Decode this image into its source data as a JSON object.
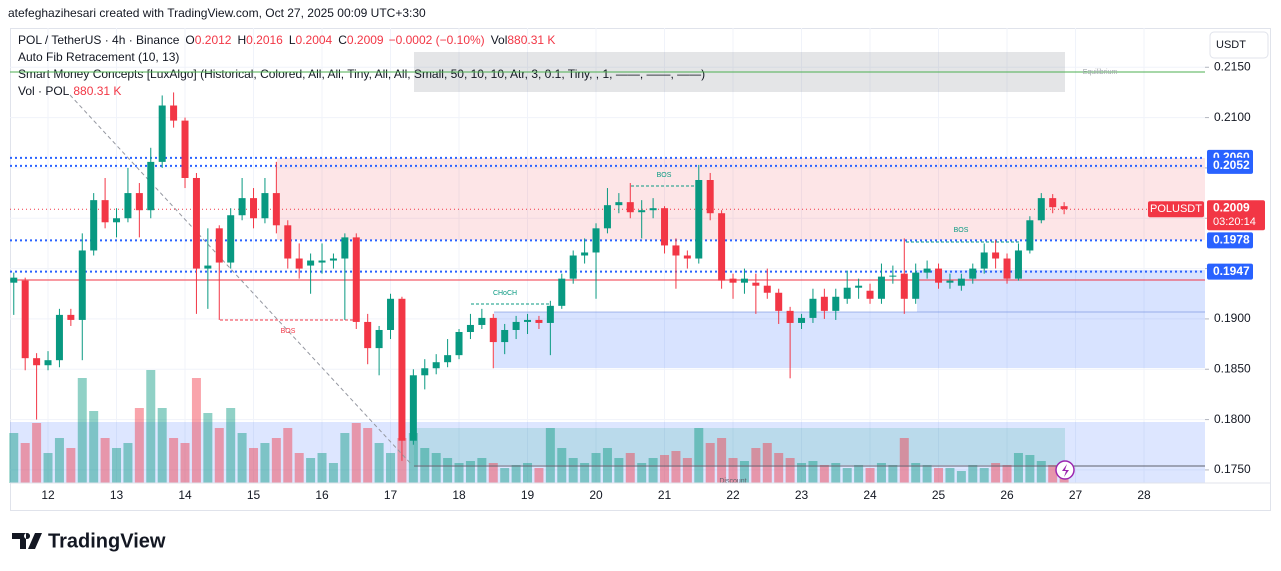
{
  "header": {
    "credit": "atefeghazihesari created with TradingView.com, Oct 27, 2025 00:09 UTC+3:30",
    "symbol": "POL / TetherUS · 4h · Binance",
    "o": "O",
    "h": "H",
    "l": "L",
    "c": "C",
    "change": "−0.0002 (−0.10%)",
    "vol": "Vol",
    "vol_value": "880.31 K",
    "indicators": [
      "Auto Fib Retracement (10, 13)",
      "Smart Money Concepts [LuxAlgo] (Historical, Colored, All, All, Tiny, All, All, Small, 50, 10, 10, Atr, 3, 0.1, Tiny, , 1, ——, ——, ——)",
      "Vol · POL"
    ]
  },
  "chart_data": {
    "type": "candlestick",
    "currency": "USDT",
    "x": [
      11.5,
      11.6667,
      11.8333,
      12,
      12.1667,
      12.3333,
      12.5,
      12.6667,
      12.8333,
      13,
      13.1667,
      13.3333,
      13.5,
      13.6667,
      13.8333,
      14,
      14.1667,
      14.3333,
      14.5,
      14.6667,
      14.8333,
      15,
      15.1667,
      15.3333,
      15.5,
      15.6667,
      15.8333,
      16,
      16.1667,
      16.3333,
      16.5,
      16.6667,
      16.8333,
      17,
      17.1667,
      17.3333,
      17.5,
      17.6667,
      17.8333,
      18,
      18.1667,
      18.3333,
      18.5,
      18.6667,
      18.8333,
      19,
      19.1667,
      19.3333,
      19.5,
      19.6667,
      19.8333,
      20,
      20.1667,
      20.3333,
      20.5,
      20.6667,
      20.8333,
      21,
      21.1667,
      21.3333,
      21.5,
      21.6667,
      21.8333,
      22,
      22.1667,
      22.3333,
      22.5,
      22.6667,
      22.8333,
      23,
      23.1667,
      23.3333,
      23.5,
      23.6667,
      23.8333,
      24,
      24.1667,
      24.3333,
      24.5,
      24.6667,
      24.8333,
      25,
      25.1667,
      25.3333,
      25.5,
      25.6667,
      25.8333,
      26,
      26.1667,
      26.3333,
      26.5,
      26.6667,
      26.8333
    ],
    "open": [
      0.1936,
      0.1938,
      0.1861,
      0.1854,
      0.1859,
      0.1904,
      0.1899,
      0.1968,
      0.2018,
      0.1996,
      0.2,
      0.2025,
      0.2008,
      0.2056,
      0.2112,
      0.2097,
      0.204,
      0.195,
      0.199,
      0.1956,
      0.2003,
      0.202,
      0.2,
      0.2025,
      0.1993,
      0.196,
      0.1953,
      0.1956,
      0.1958,
      0.196,
      0.1981,
      0.1897,
      0.1871,
      0.1889,
      0.192,
      0.1779,
      0.1844,
      0.1851,
      0.1857,
      0.1864,
      0.1887,
      0.1894,
      0.1901,
      0.1877,
      0.1889,
      0.1897,
      0.1899,
      0.1896,
      0.1913,
      0.194,
      0.1963,
      0.1966,
      0.199,
      0.2013,
      0.2016,
      0.2006,
      0.2008,
      0.201,
      0.1973,
      0.1963,
      0.196,
      0.2038,
      0.2005,
      0.194,
      0.1936,
      0.1936,
      0.1933,
      0.1926,
      0.1908,
      0.1896,
      0.1901,
      0.1922,
      0.1908,
      0.192,
      0.1931,
      0.1928,
      0.192,
      0.1942,
      0.1945,
      0.192,
      0.1946,
      0.195,
      0.1936,
      0.1933,
      0.194,
      0.195,
      0.1966,
      0.196,
      0.194,
      0.1968,
      0.1998,
      0.202,
      0.2012
    ],
    "high": [
      0.1946,
      0.1941,
      0.1866,
      0.1868,
      0.191,
      0.191,
      0.1985,
      0.2025,
      0.204,
      0.201,
      0.205,
      0.2035,
      0.207,
      0.2122,
      0.2125,
      0.21,
      0.2045,
      0.199,
      0.1993,
      0.201,
      0.204,
      0.203,
      0.204,
      0.2056,
      0.1998,
      0.1975,
      0.1965,
      0.1975,
      0.1965,
      0.1985,
      0.1985,
      0.1905,
      0.1893,
      0.1925,
      0.1922,
      0.185,
      0.186,
      0.1865,
      0.188,
      0.189,
      0.1905,
      0.191,
      0.1905,
      0.1895,
      0.1903,
      0.1905,
      0.1903,
      0.1918,
      0.1945,
      0.1968,
      0.198,
      0.1995,
      0.203,
      0.2025,
      0.2035,
      0.2018,
      0.202,
      0.2012,
      0.198,
      0.1968,
      0.2053,
      0.2045,
      0.2008,
      0.1945,
      0.195,
      0.1945,
      0.195,
      0.193,
      0.1912,
      0.1905,
      0.193,
      0.193,
      0.193,
      0.1948,
      0.194,
      0.1935,
      0.1955,
      0.1953,
      0.198,
      0.1955,
      0.1958,
      0.1955,
      0.1945,
      0.1945,
      0.1955,
      0.1975,
      0.1978,
      0.1965,
      0.1975,
      0.2002,
      0.2025,
      0.2024,
      0.2016
    ],
    "low": [
      0.1904,
      0.1849,
      0.18,
      0.1849,
      0.1852,
      0.1893,
      0.1859,
      0.1963,
      0.199,
      0.1981,
      0.1996,
      0.1981,
      0.2,
      0.205,
      0.209,
      0.203,
      0.1905,
      0.191,
      0.1899,
      0.195,
      0.1998,
      0.199,
      0.1995,
      0.1985,
      0.195,
      0.194,
      0.1925,
      0.1945,
      0.195,
      0.1899,
      0.189,
      0.1855,
      0.1844,
      0.188,
      0.1759,
      0.1775,
      0.183,
      0.1845,
      0.1852,
      0.186,
      0.188,
      0.189,
      0.1851,
      0.1865,
      0.188,
      0.1885,
      0.189,
      0.1864,
      0.191,
      0.1935,
      0.1955,
      0.192,
      0.1985,
      0.2005,
      0.2,
      0.198,
      0.2,
      0.1965,
      0.193,
      0.195,
      0.1955,
      0.1998,
      0.193,
      0.192,
      0.1925,
      0.1905,
      0.192,
      0.1895,
      0.1841,
      0.189,
      0.1896,
      0.19,
      0.1899,
      0.1915,
      0.192,
      0.1915,
      0.1915,
      0.1935,
      0.1905,
      0.1915,
      0.194,
      0.193,
      0.193,
      0.1928,
      0.1935,
      0.1945,
      0.195,
      0.1935,
      0.1938,
      0.1965,
      0.1995,
      0.2005,
      0.2004
    ],
    "close": [
      0.1941,
      0.1861,
      0.1854,
      0.1859,
      0.1904,
      0.1899,
      0.1968,
      0.2018,
      0.1996,
      0.2,
      0.2025,
      0.2008,
      0.2056,
      0.2112,
      0.2097,
      0.204,
      0.195,
      0.1953,
      0.1956,
      0.2003,
      0.202,
      0.2,
      0.2025,
      0.1993,
      0.196,
      0.195,
      0.1958,
      0.1958,
      0.196,
      0.1981,
      0.1897,
      0.1871,
      0.1889,
      0.192,
      0.1779,
      0.1844,
      0.1851,
      0.1857,
      0.1864,
      0.1887,
      0.1894,
      0.1901,
      0.1877,
      0.1889,
      0.1897,
      0.1899,
      0.1896,
      0.1913,
      0.194,
      0.1963,
      0.1966,
      0.199,
      0.2013,
      0.2016,
      0.2006,
      0.2008,
      0.201,
      0.1973,
      0.1963,
      0.196,
      0.2038,
      0.2005,
      0.1938,
      0.1936,
      0.194,
      0.1933,
      0.1926,
      0.1908,
      0.1896,
      0.1901,
      0.192,
      0.1908,
      0.1922,
      0.1931,
      0.1933,
      0.192,
      0.1942,
      0.1943,
      0.192,
      0.1946,
      0.195,
      0.1936,
      0.1938,
      0.194,
      0.195,
      0.1966,
      0.196,
      0.194,
      0.1968,
      0.1998,
      0.202,
      0.2011,
      0.2009
    ],
    "volume": [
      3400,
      2720,
      4080,
      2040,
      3060,
      2380,
      7140,
      4896,
      3060,
      2380,
      2720,
      5100,
      7684,
      5100,
      3060,
      2720,
      7140,
      4760,
      3740,
      5100,
      3400,
      2380,
      2720,
      3060,
      3740,
      2040,
      1700,
      2040,
      1360,
      3400,
      4080,
      3740,
      2720,
      2040,
      3060,
      3400,
      2380,
      2040,
      1700,
      1360,
      1496,
      1700,
      1360,
      1020,
      1224,
      1360,
      1020,
      3740,
      2380,
      1700,
      1360,
      2040,
      2380,
      1700,
      2040,
      1360,
      1700,
      1904,
      2176,
      1700,
      3740,
      2720,
      3060,
      1700,
      1496,
      2380,
      2720,
      2040,
      1700,
      1360,
      1496,
      1224,
      1360,
      1020,
      1224,
      1020,
      1360,
      1224,
      3060,
      1360,
      1224,
      1020,
      1020,
      816,
      1224,
      1020,
      1360,
      1224,
      2040,
      1904,
      1496,
      1224,
      880.31
    ],
    "up_color": "#089981",
    "down_color": "#f23645",
    "xlim": [
      11.445,
      28.89
    ],
    "xticks": [
      12,
      13,
      14,
      15,
      16,
      17,
      18,
      19,
      20,
      21,
      22,
      23,
      24,
      25,
      26,
      27,
      28
    ],
    "ylim": [
      0.1737,
      0.2189
    ],
    "yticks": [
      {
        "value": 0.175,
        "label": "0.1750"
      },
      {
        "value": 0.18,
        "label": "0.1800"
      },
      {
        "value": 0.185,
        "label": "0.1850"
      },
      {
        "value": 0.19,
        "label": "0.1900"
      },
      {
        "value": 0.195,
        "label": ""
      },
      {
        "value": 0.2,
        "label": ""
      },
      {
        "value": 0.205,
        "label": ""
      },
      {
        "value": 0.21,
        "label": "0.2100"
      },
      {
        "value": 0.215,
        "label": "0.2150"
      }
    ],
    "grid": true,
    "levels": [
      {
        "value": 0.206,
        "label": "0.2060"
      },
      {
        "value": 0.2052,
        "label": "0.2052"
      },
      {
        "value": 0.1978,
        "label": "0.1978"
      },
      {
        "value": 0.1947,
        "label": "0.1947"
      }
    ],
    "level_color": "#2962ff",
    "last_price": {
      "symbol": "POLUSDT",
      "countdown": "03:20:14"
    },
    "annotations": [
      "Equilibrium",
      "BOS",
      "BOS",
      "BOS",
      "CHoCH",
      "Discount"
    ]
  },
  "footer": {
    "brand": "TradingView"
  }
}
